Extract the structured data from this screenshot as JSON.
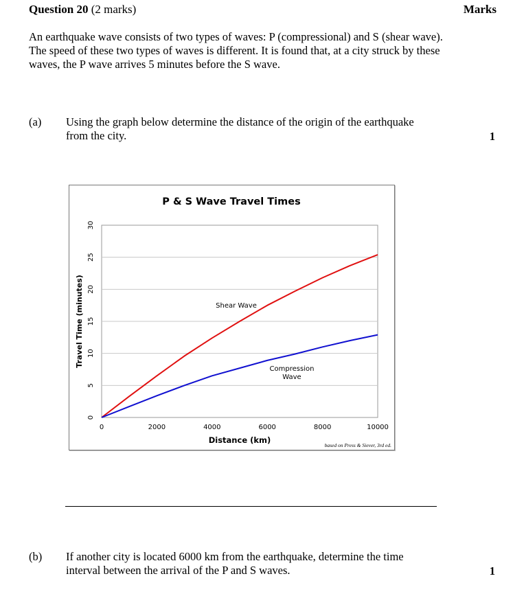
{
  "question": {
    "label": "Question",
    "number": "20",
    "marks_text": "(2 marks)",
    "marks_header": "Marks",
    "intro": "An earthquake wave consists of two types of waves: P (compressional) and S (shear wave). The speed of these two types of waves is different. It is found that, at a city struck by these waves, the P wave arrives 5 minutes before the S wave."
  },
  "part_a": {
    "label": "(a)",
    "text": "Using the graph below determine the distance of the origin of the earthquake from the city.",
    "marks": "1"
  },
  "part_b": {
    "label": "(b)",
    "text": "If another city is located 6000 km from the earthquake, determine the time interval between the arrival of the P and S waves.",
    "marks": "1"
  },
  "chart_data": {
    "type": "line",
    "title": "P & S Wave Travel Times",
    "xlabel": "Distance (km)",
    "ylabel": "Travel Time (minutes)",
    "xlim": [
      0,
      10000
    ],
    "ylim": [
      0,
      30
    ],
    "xticks": [
      0,
      2000,
      4000,
      6000,
      8000,
      10000
    ],
    "yticks": [
      0,
      5,
      10,
      15,
      20,
      25,
      30
    ],
    "grid": true,
    "source_note": "based on Press & Siever, 3rd ed.",
    "series": [
      {
        "name": "Shear Wave",
        "color": "#e01010",
        "x": [
          0,
          1000,
          2000,
          3000,
          4000,
          5000,
          6000,
          7000,
          8000,
          9000,
          10000
        ],
        "y": [
          0,
          3.3,
          6.5,
          9.6,
          12.4,
          15.0,
          17.5,
          19.7,
          21.8,
          23.7,
          25.4
        ]
      },
      {
        "name": "Compression Wave",
        "name_lines": [
          "Compression",
          "Wave"
        ],
        "color": "#1010d0",
        "x": [
          0,
          1000,
          2000,
          3000,
          4000,
          5000,
          6000,
          7000,
          8000,
          9000,
          10000
        ],
        "y": [
          0,
          1.7,
          3.4,
          5.0,
          6.5,
          7.7,
          8.9,
          9.9,
          11.0,
          12.0,
          12.9
        ]
      }
    ]
  }
}
